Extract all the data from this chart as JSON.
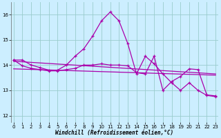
{
  "x": [
    0,
    1,
    2,
    3,
    4,
    5,
    6,
    7,
    8,
    9,
    10,
    11,
    12,
    13,
    14,
    15,
    16,
    17,
    18,
    19,
    20,
    21,
    22,
    23
  ],
  "line_zigzag": [
    14.2,
    14.2,
    14.0,
    13.9,
    13.8,
    13.8,
    14.0,
    14.35,
    14.65,
    15.15,
    15.75,
    16.1,
    15.75,
    14.85,
    13.65,
    14.35,
    14.05,
    13.65,
    13.3,
    13.0,
    13.3,
    13.0,
    12.8,
    12.75
  ],
  "line_flat": [
    14.2,
    13.97,
    13.87,
    13.82,
    13.77,
    13.77,
    13.82,
    13.87,
    14.0,
    14.0,
    14.05,
    14.0,
    14.0,
    13.97,
    13.7,
    13.65,
    14.35,
    13.0,
    13.35,
    13.55,
    13.85,
    13.82,
    12.82,
    12.78
  ],
  "line_trend1_x": [
    0,
    23
  ],
  "line_trend1_y": [
    14.15,
    13.65
  ],
  "line_trend2_x": [
    0,
    23
  ],
  "line_trend2_y": [
    13.85,
    13.6
  ],
  "ylim": [
    11.75,
    16.5
  ],
  "xlim": [
    -0.3,
    23.3
  ],
  "yticks": [
    12,
    13,
    14,
    15,
    16
  ],
  "xticks": [
    0,
    1,
    2,
    3,
    4,
    5,
    6,
    7,
    8,
    9,
    10,
    11,
    12,
    13,
    14,
    15,
    16,
    17,
    18,
    19,
    20,
    21,
    22,
    23
  ],
  "line_color": "#aa00aa",
  "bg_color": "#cceeff",
  "grid_color": "#99cccc",
  "xlabel": "Windchill (Refroidissement éolien,°C)",
  "figsize": [
    3.2,
    2.0
  ],
  "dpi": 100
}
